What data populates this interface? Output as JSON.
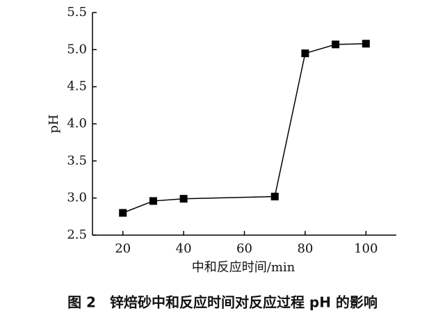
{
  "chart_data": {
    "type": "line",
    "title": "图 2　锌焙砂中和反应时间对反应过程 pH 的影响",
    "x_label": "中和反应时间/min",
    "y_label": "pH",
    "series": [
      {
        "name": "pH",
        "color": "#000000",
        "x": [
          20,
          30,
          40,
          70,
          80,
          90,
          100
        ],
        "values": [
          2.8,
          2.96,
          2.99,
          3.02,
          4.95,
          5.07,
          5.08
        ]
      }
    ],
    "xlim": [
      10,
      110
    ],
    "xticks": [
      20,
      40,
      60,
      80,
      100
    ],
    "ylim": [
      2.5,
      5.5
    ],
    "yticks": [
      {
        "value": 2.5,
        "label": "2.5"
      },
      {
        "value": 3.0,
        "label": "3.0"
      },
      {
        "value": 3.5,
        "label": "3.5"
      },
      {
        "value": 4.0,
        "label": "4.0"
      },
      {
        "value": 4.5,
        "label": "4.5"
      },
      {
        "value": 5.0,
        "label": "5.0"
      },
      {
        "value": 5.5,
        "label": "5.5"
      }
    ],
    "grid": false
  }
}
